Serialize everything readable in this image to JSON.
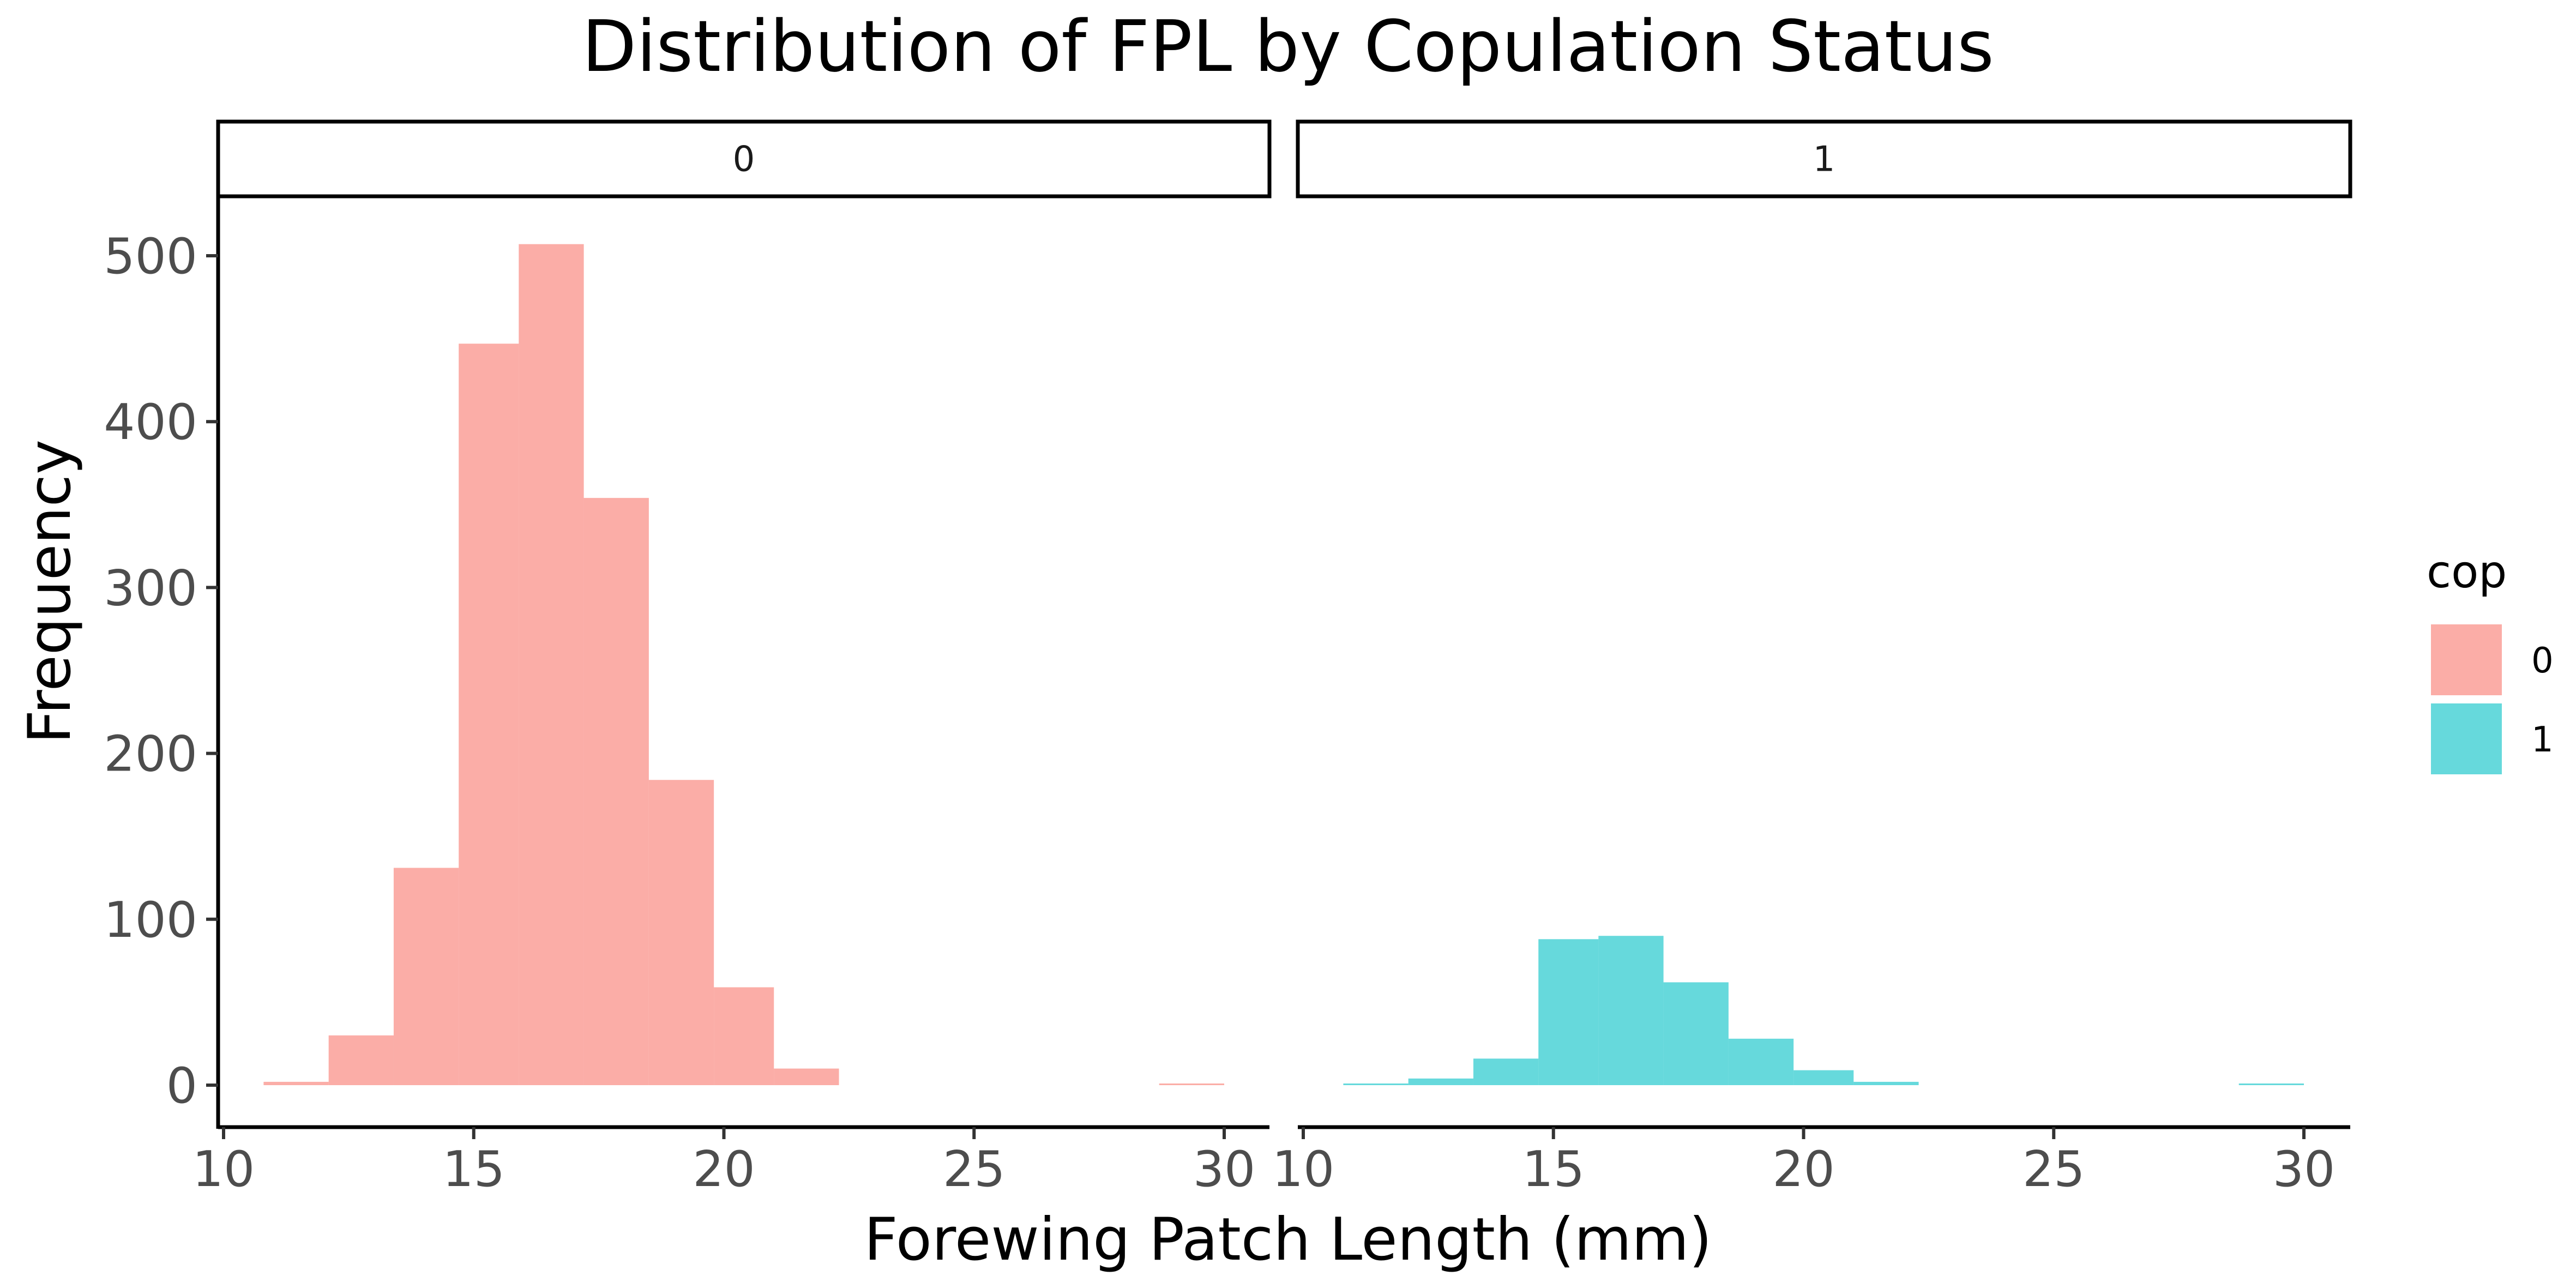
{
  "chart_data": {
    "type": "bar",
    "title": "Distribution of FPL by Copulation Status",
    "xlabel": "Forewing Patch Length (mm)",
    "ylabel": "Frequency",
    "xlim": [
      10,
      31
    ],
    "ylim": [
      0,
      500
    ],
    "x_ticks": [
      "10",
      "15",
      "20",
      "25",
      "30"
    ],
    "y_ticks": [
      "0",
      "100",
      "200",
      "300",
      "400",
      "500"
    ],
    "grid": false,
    "legend": {
      "title": "cop",
      "position": "right",
      "entries": [
        {
          "label": "0",
          "color": "#f8766d"
        },
        {
          "label": "1",
          "color": "#00bfc4"
        }
      ]
    },
    "panels": [
      {
        "strip": "0",
        "color": "#f8766d",
        "bins": [
          {
            "x0": 10.8,
            "x1": 12.1,
            "count": 2
          },
          {
            "x0": 12.1,
            "x1": 13.4,
            "count": 30
          },
          {
            "x0": 13.4,
            "x1": 14.7,
            "count": 131
          },
          {
            "x0": 14.7,
            "x1": 15.9,
            "count": 447
          },
          {
            "x0": 15.9,
            "x1": 17.2,
            "count": 507
          },
          {
            "x0": 17.2,
            "x1": 18.5,
            "count": 354
          },
          {
            "x0": 18.5,
            "x1": 19.8,
            "count": 184
          },
          {
            "x0": 19.8,
            "x1": 21.0,
            "count": 59
          },
          {
            "x0": 21.0,
            "x1": 22.3,
            "count": 10
          },
          {
            "x0": 28.7,
            "x1": 30.0,
            "count": 1
          }
        ]
      },
      {
        "strip": "1",
        "color": "#00bfc4",
        "bins": [
          {
            "x0": 10.8,
            "x1": 12.1,
            "count": 1
          },
          {
            "x0": 12.1,
            "x1": 13.4,
            "count": 4
          },
          {
            "x0": 13.4,
            "x1": 14.7,
            "count": 16
          },
          {
            "x0": 14.7,
            "x1": 15.9,
            "count": 88
          },
          {
            "x0": 15.9,
            "x1": 17.2,
            "count": 90
          },
          {
            "x0": 17.2,
            "x1": 18.5,
            "count": 62
          },
          {
            "x0": 18.5,
            "x1": 19.8,
            "count": 28
          },
          {
            "x0": 19.8,
            "x1": 21.0,
            "count": 9
          },
          {
            "x0": 21.0,
            "x1": 22.3,
            "count": 2
          },
          {
            "x0": 28.7,
            "x1": 30.0,
            "count": 1
          }
        ]
      }
    ]
  }
}
